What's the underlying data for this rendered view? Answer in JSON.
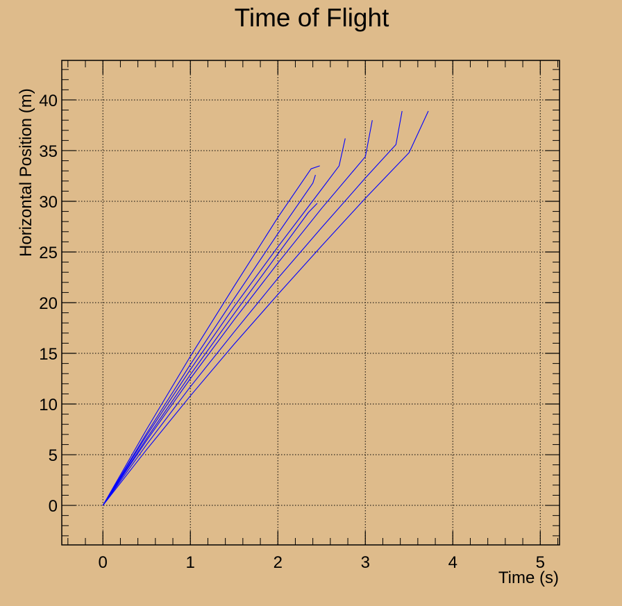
{
  "chart_data": {
    "type": "line",
    "title": "Time of Flight",
    "xlabel": "Time (s)",
    "ylabel": "Horizontal Position (m)",
    "xlim": [
      -0.47,
      5.22
    ],
    "ylim": [
      -3.9,
      43.9
    ],
    "xticks": [
      "0",
      "1",
      "2",
      "3",
      "4",
      "5"
    ],
    "yticks": [
      "0",
      "5",
      "10",
      "15",
      "20",
      "25",
      "30",
      "35",
      "40"
    ],
    "grid": true,
    "series": [
      {
        "x": [
          0,
          0.5,
          1.0,
          1.5,
          2.0,
          2.35,
          2.45
        ],
        "y": [
          0,
          6.6,
          12.9,
          18.9,
          24.8,
          28.9,
          29.8
        ]
      },
      {
        "x": [
          0,
          0.5,
          1.0,
          1.5,
          2.0,
          2.4,
          2.43
        ],
        "y": [
          0,
          7.1,
          13.9,
          20.4,
          26.8,
          31.8,
          32.6
        ]
      },
      {
        "x": [
          0,
          0.5,
          1.0,
          1.5,
          2.0,
          2.38,
          2.48
        ],
        "y": [
          0,
          7.5,
          14.7,
          21.6,
          28.4,
          33.2,
          33.5
        ]
      },
      {
        "x": [
          0,
          0.5,
          1.0,
          1.5,
          2.0,
          2.5,
          2.7,
          2.77
        ],
        "y": [
          0,
          6.9,
          13.4,
          19.6,
          25.5,
          31.2,
          33.5,
          36.2
        ]
      },
      {
        "x": [
          0,
          0.5,
          1.0,
          1.5,
          2.0,
          2.5,
          3.0,
          3.08
        ],
        "y": [
          0,
          6.4,
          12.5,
          18.3,
          23.9,
          29.3,
          34.4,
          38.0
        ]
      },
      {
        "x": [
          0,
          0.5,
          1.0,
          1.5,
          2.0,
          2.5,
          3.0,
          3.35,
          3.42
        ],
        "y": [
          0,
          6.0,
          11.7,
          17.1,
          22.4,
          27.4,
          32.3,
          35.6,
          38.9
        ]
      },
      {
        "x": [
          0,
          0.5,
          1.0,
          1.5,
          2.0,
          2.5,
          3.0,
          3.5,
          3.72
        ],
        "y": [
          0,
          5.5,
          10.8,
          15.9,
          20.8,
          25.6,
          30.3,
          34.8,
          38.9
        ]
      }
    ],
    "colors": {
      "series": "#0000FF",
      "background": "#DEBB8B",
      "frame": "#000000"
    }
  }
}
